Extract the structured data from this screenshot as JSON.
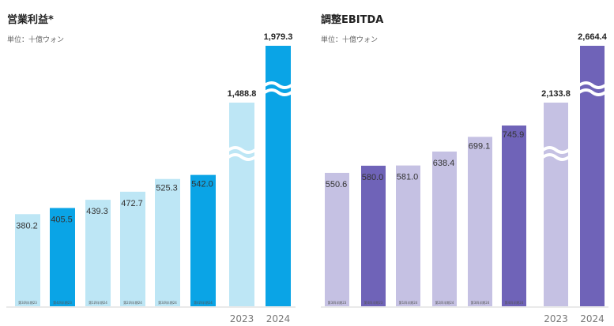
{
  "chart_data": [
    {
      "type": "bar",
      "title": "営業利益*",
      "unit": "単位：十億ウォン",
      "categories": [
        "第3四半期23",
        "第4四半期23",
        "第1四半期24",
        "第2四半期24",
        "第3四半期24",
        "第4四半期24",
        "2023",
        "2024"
      ],
      "values": [
        380.2,
        405.5,
        439.3,
        472.7,
        525.3,
        542.0,
        1488.8,
        1979.3
      ],
      "labels": [
        "380.2",
        "405.5",
        "439.3",
        "472.7",
        "525.3",
        "542.0",
        "1,488.8",
        "1,979.3"
      ],
      "highlight": [
        false,
        true,
        false,
        false,
        false,
        true,
        false,
        true
      ],
      "broken": [
        false,
        false,
        false,
        false,
        false,
        false,
        true,
        true
      ],
      "colors": {
        "light": "#bde6f5",
        "dark": "#0aa4e6"
      }
    },
    {
      "type": "bar",
      "title": "調整EBITDA",
      "unit": "単位：十億ウォン",
      "categories": [
        "第3四半期23",
        "第4四半期23",
        "第1四半期24",
        "第2四半期24",
        "第3四半期24",
        "第4四半期24",
        "2023",
        "2024"
      ],
      "values": [
        550.6,
        580.0,
        581.0,
        638.4,
        699.1,
        745.9,
        2133.8,
        2664.4
      ],
      "labels": [
        "550.6",
        "580.0",
        "581.0",
        "638.4",
        "699.1",
        "745.9",
        "2,133.8",
        "2,664.4"
      ],
      "highlight": [
        false,
        true,
        false,
        false,
        false,
        true,
        false,
        true
      ],
      "broken": [
        false,
        false,
        false,
        false,
        false,
        false,
        true,
        true
      ],
      "colors": {
        "light": "#c5c1e3",
        "dark": "#6f63b8"
      }
    }
  ]
}
